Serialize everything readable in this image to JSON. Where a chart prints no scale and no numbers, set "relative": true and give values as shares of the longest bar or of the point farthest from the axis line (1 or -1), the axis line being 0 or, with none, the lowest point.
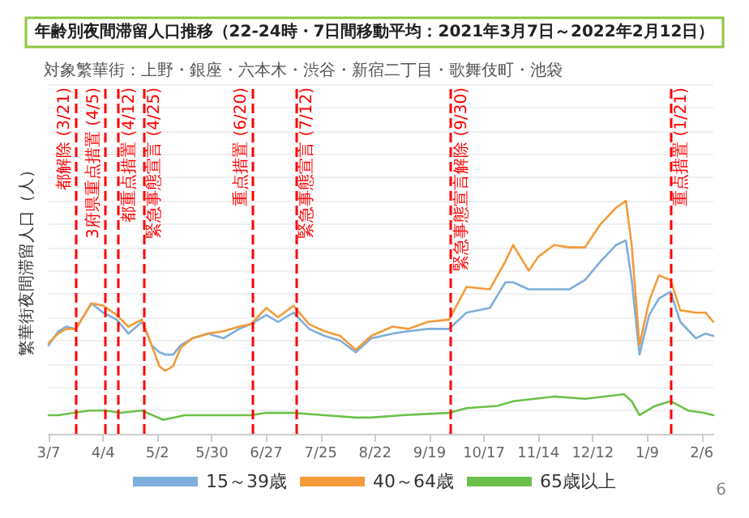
{
  "chart_data": {
    "type": "line",
    "title": "年齢別夜間滞留人口推移（22-24時・7日間移動平均：2021年3月7日～2022年2月12日）",
    "subtitle": "対象繁華街：上野・銀座・六本木・渋谷・新宿二丁目・歌舞伎町・池袋",
    "ylabel": "繁華街夜間滞留人口（人）",
    "relative": true,
    "tick_labels": "x",
    "legend": "bottom",
    "grid": "y",
    "marker": "none",
    "line_style": "solid",
    "xlim": [
      "2021-03-07",
      "2022-02-12"
    ],
    "xticks": [
      {
        "value": "2021-03-07",
        "label": "3/7"
      },
      {
        "value": "2021-04-04",
        "label": "4/4"
      },
      {
        "value": "2021-05-02",
        "label": "5/2"
      },
      {
        "value": "2021-05-30",
        "label": "5/30"
      },
      {
        "value": "2021-06-27",
        "label": "6/27"
      },
      {
        "value": "2021-07-25",
        "label": "7/25"
      },
      {
        "value": "2021-08-22",
        "label": "8/22"
      },
      {
        "value": "2021-09-19",
        "label": "9/19"
      },
      {
        "value": "2021-10-17",
        "label": "10/17"
      },
      {
        "value": "2021-11-14",
        "label": "11/14"
      },
      {
        "value": "2021-12-12",
        "label": "12/12"
      },
      {
        "value": "2022-01-09",
        "label": "1/9"
      },
      {
        "value": "2022-02-06",
        "label": "2/6"
      }
    ],
    "x": [
      "2021-03-07",
      "2021-03-12",
      "2021-03-16",
      "2021-03-21",
      "2021-03-29",
      "2021-04-04",
      "2021-04-11",
      "2021-04-17",
      "2021-04-24",
      "2021-04-29",
      "2021-05-03",
      "2021-05-06",
      "2021-05-10",
      "2021-05-14",
      "2021-05-20",
      "2021-05-28",
      "2021-06-05",
      "2021-06-13",
      "2021-06-19",
      "2021-06-27",
      "2021-07-03",
      "2021-07-11",
      "2021-07-19",
      "2021-07-27",
      "2021-08-04",
      "2021-08-12",
      "2021-08-20",
      "2021-08-31",
      "2021-09-08",
      "2021-09-18",
      "2021-09-29",
      "2021-10-08",
      "2021-10-20",
      "2021-10-28",
      "2021-11-01",
      "2021-11-09",
      "2021-11-14",
      "2021-11-22",
      "2021-11-30",
      "2021-12-08",
      "2021-12-16",
      "2021-12-24",
      "2021-12-29",
      "2022-01-01",
      "2022-01-05",
      "2022-01-10",
      "2022-01-15",
      "2022-01-21",
      "2022-01-26",
      "2022-02-03",
      "2022-02-08",
      "2022-02-12"
    ],
    "series": [
      {
        "name": "15～39歳",
        "color": "#7eaedb",
        "values": [
          0.38,
          0.44,
          0.46,
          0.45,
          0.56,
          0.52,
          0.49,
          0.43,
          0.48,
          0.38,
          0.35,
          0.34,
          0.34,
          0.38,
          0.41,
          0.43,
          0.41,
          0.45,
          0.47,
          0.51,
          0.48,
          0.52,
          0.45,
          0.42,
          0.4,
          0.35,
          0.41,
          0.43,
          0.44,
          0.45,
          0.45,
          0.52,
          0.54,
          0.65,
          0.65,
          0.62,
          0.62,
          0.62,
          0.62,
          0.66,
          0.74,
          0.81,
          0.83,
          0.66,
          0.34,
          0.51,
          0.58,
          0.61,
          0.48,
          0.41,
          0.43,
          0.42
        ]
      },
      {
        "name": "40～64歳",
        "color": "#f39b3a",
        "values": [
          0.39,
          0.43,
          0.45,
          0.45,
          0.56,
          0.55,
          0.51,
          0.46,
          0.49,
          0.38,
          0.29,
          0.27,
          0.29,
          0.37,
          0.41,
          0.43,
          0.44,
          0.46,
          0.47,
          0.54,
          0.5,
          0.55,
          0.47,
          0.44,
          0.42,
          0.36,
          0.42,
          0.46,
          0.45,
          0.48,
          0.49,
          0.63,
          0.62,
          0.74,
          0.81,
          0.7,
          0.76,
          0.81,
          0.8,
          0.8,
          0.9,
          0.97,
          1,
          0.81,
          0.38,
          0.57,
          0.68,
          0.66,
          0.53,
          0.52,
          0.52,
          0.48
        ]
      },
      {
        "name": "65歳以上",
        "color": "#6cc04a",
        "x": [
          "2021-03-07",
          "2021-03-12",
          "2021-03-20",
          "2021-03-28",
          "2021-04-05",
          "2021-04-13",
          "2021-04-24",
          "2021-05-05",
          "2021-05-16",
          "2021-06-01",
          "2021-06-19",
          "2021-06-27",
          "2021-07-11",
          "2021-07-27",
          "2021-08-12",
          "2021-08-20",
          "2021-09-05",
          "2021-09-29",
          "2021-10-08",
          "2021-10-24",
          "2021-11-01",
          "2021-11-22",
          "2021-12-08",
          "2021-12-28",
          "2022-01-01",
          "2022-01-05",
          "2022-01-13",
          "2022-01-21",
          "2022-01-30",
          "2022-02-07",
          "2022-02-12"
        ],
        "values": [
          0.08,
          0.08,
          0.09,
          0.1,
          0.1,
          0.09,
          0.1,
          0.06,
          0.08,
          0.08,
          0.08,
          0.09,
          0.09,
          0.08,
          0.07,
          0.07,
          0.08,
          0.09,
          0.11,
          0.12,
          0.14,
          0.16,
          0.15,
          0.17,
          0.14,
          0.08,
          0.12,
          0.14,
          0.1,
          0.09,
          0.08
        ]
      }
    ],
    "ref_lines": [
      {
        "axis": "x",
        "value": "2021-03-21",
        "label": "都解除 (3/21)",
        "color": "#ff0000",
        "line_style": "dashed"
      },
      {
        "axis": "x",
        "value": "2021-04-05",
        "label": "3府県重点措置 (4/5)",
        "color": "#ff0000",
        "line_style": "dashed"
      },
      {
        "axis": "x",
        "value": "2021-04-12",
        "label": "都重点措置 (4/12)",
        "color": "#ff0000",
        "line_style": "dashed"
      },
      {
        "axis": "x",
        "value": "2021-04-25",
        "label": "緊急事態宣言 (4/25)",
        "color": "#ff0000",
        "line_style": "dashed"
      },
      {
        "axis": "x",
        "value": "2021-06-20",
        "label": "重点措置 (6/20)",
        "color": "#ff0000",
        "line_style": "dashed"
      },
      {
        "axis": "x",
        "value": "2021-07-12",
        "label": "緊急事態宣言 (7/12)",
        "color": "#ff0000",
        "line_style": "dashed"
      },
      {
        "axis": "x",
        "value": "2021-09-30",
        "label": "緊急事態宣言解除 (9/30)",
        "color": "#ff0000",
        "line_style": "dashed"
      },
      {
        "axis": "x",
        "value": "2022-01-21",
        "label": "重点措置 (1/21)",
        "color": "#ff0000",
        "line_style": "dashed"
      }
    ],
    "annotations": [
      "6"
    ]
  }
}
